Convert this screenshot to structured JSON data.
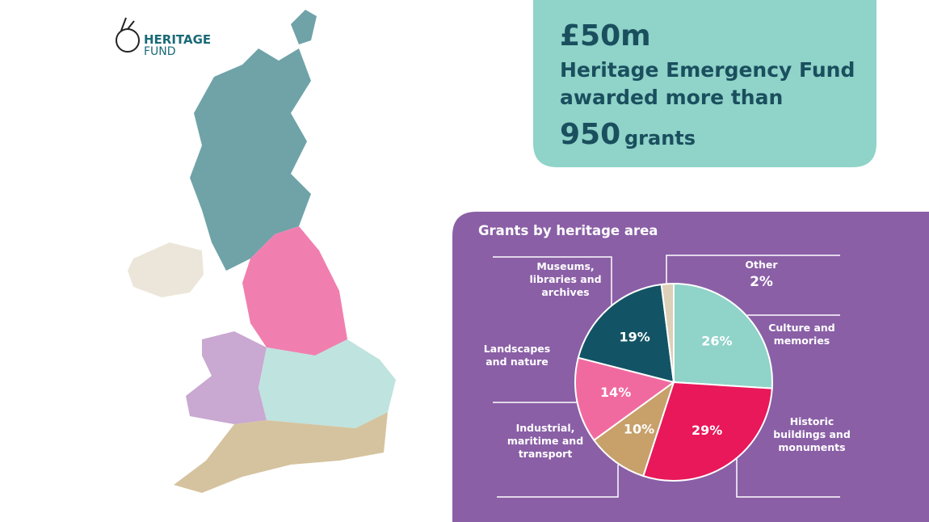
{
  "logo": {
    "line1": "HERITAGE",
    "line2": "FUND"
  },
  "headline": {
    "amount": "£50m",
    "line1": "Heritage Emergency Fund",
    "line2": "awarded more than",
    "count": "950",
    "count_unit": "grants"
  },
  "chart_data": {
    "type": "pie",
    "title": "Grants by heritage area",
    "categories": [
      "Culture and memories",
      "Historic buildings and monuments",
      "Industrial, maritime and transport",
      "Landscapes and nature",
      "Museums, libraries and archives",
      "Other"
    ],
    "values": [
      26,
      29,
      10,
      14,
      19,
      2
    ],
    "value_labels": [
      "26%",
      "29%",
      "10%",
      "14%",
      "19%",
      "2%"
    ],
    "colors": [
      "#8fd3c9",
      "#e8185a",
      "#c7a06a",
      "#f06aa0",
      "#125465",
      "#ddd0b8"
    ]
  }
}
